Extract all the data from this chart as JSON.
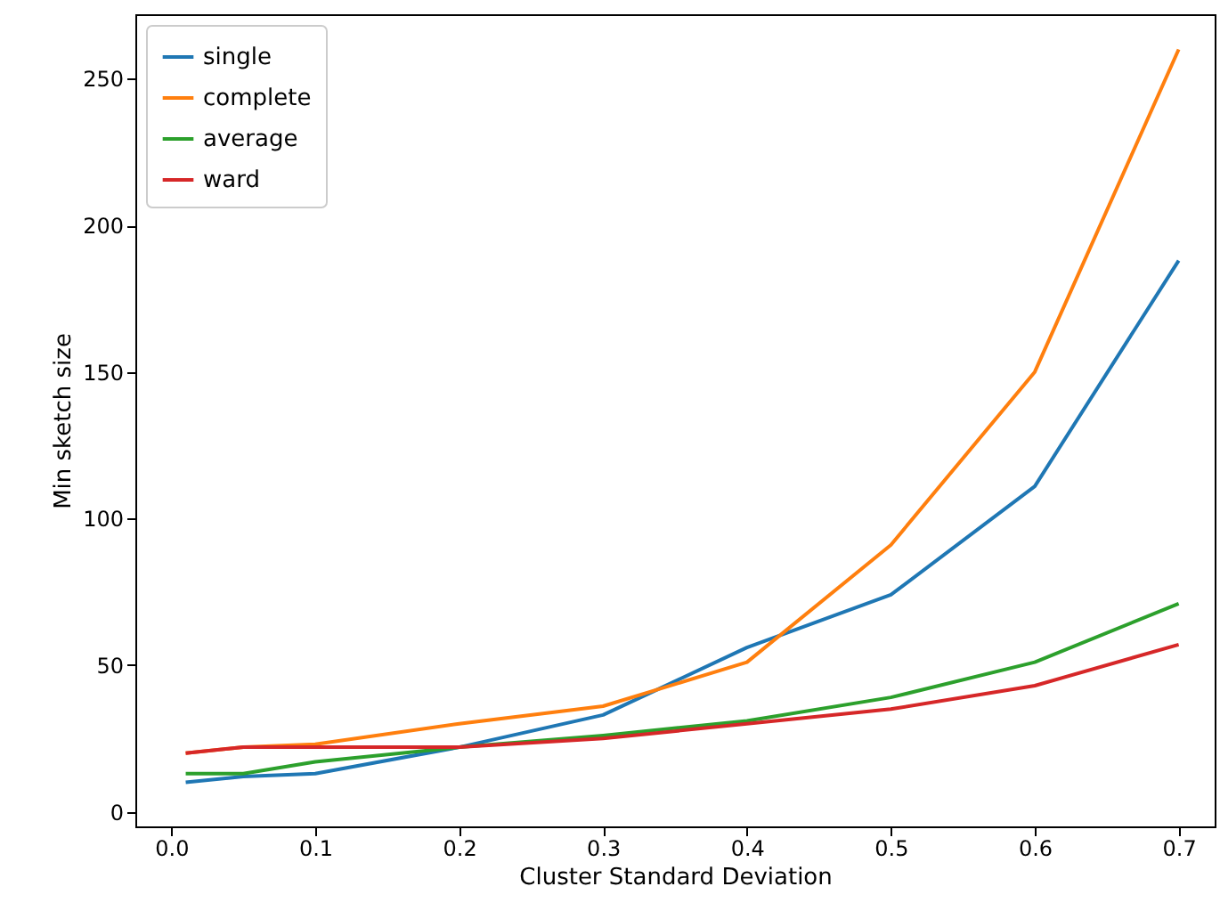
{
  "chart_data": {
    "type": "line",
    "xlabel": "Cluster Standard Deviation",
    "ylabel": "Min sketch size",
    "x": [
      0.01,
      0.05,
      0.1,
      0.2,
      0.3,
      0.4,
      0.5,
      0.6,
      0.7
    ],
    "series": [
      {
        "name": "single",
        "color": "#1f77b4",
        "values": [
          10,
          12,
          13,
          22,
          33,
          56,
          74,
          111,
          188
        ]
      },
      {
        "name": "complete",
        "color": "#ff7f0e",
        "values": [
          20,
          22,
          23,
          30,
          36,
          51,
          91,
          150,
          260
        ]
      },
      {
        "name": "average",
        "color": "#2ca02c",
        "values": [
          13,
          13,
          17,
          22,
          26,
          31,
          39,
          51,
          71
        ]
      },
      {
        "name": "ward",
        "color": "#d62728",
        "values": [
          20,
          22,
          22,
          22,
          25,
          30,
          35,
          43,
          57
        ]
      }
    ],
    "xlim": [
      -0.025,
      0.725
    ],
    "xticks": [
      {
        "value": 0,
        "label": "0.0"
      },
      0.1,
      0.2,
      0.3,
      0.4,
      0.5,
      0.6,
      0.7
    ],
    "ylim": [
      -5,
      272
    ],
    "yticks": [
      0,
      50,
      100,
      150,
      200,
      250
    ],
    "grid": false,
    "legend": "top left",
    "marker": "none",
    "line_style": "solid"
  }
}
